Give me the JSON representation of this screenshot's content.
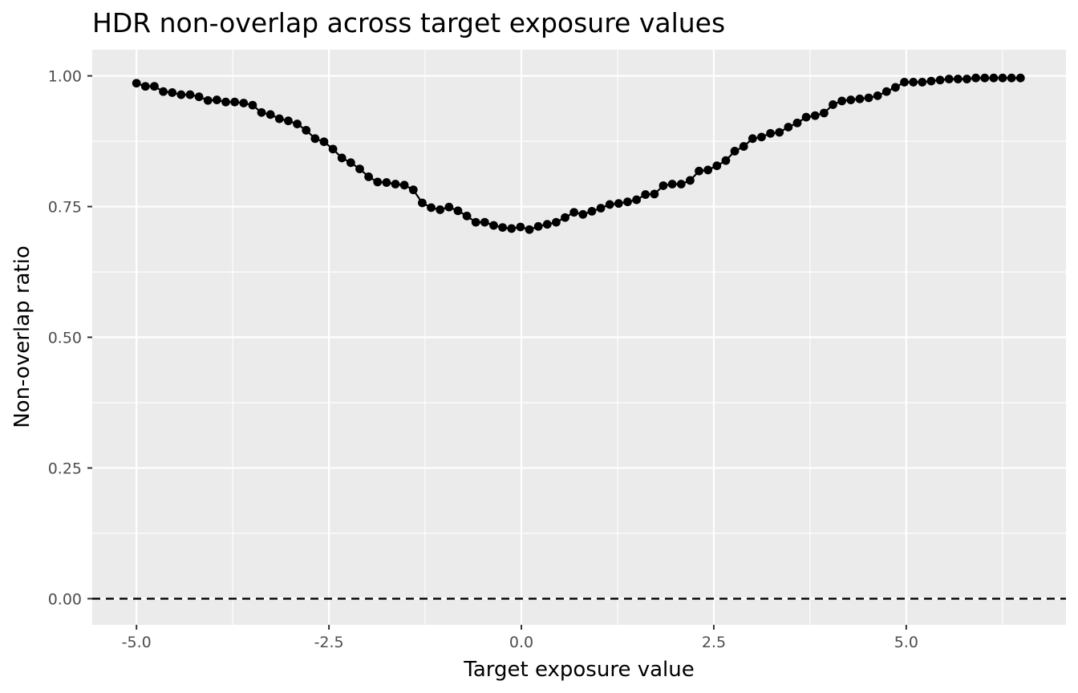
{
  "chart_data": {
    "type": "line",
    "title": "HDR non-overlap across target exposure values",
    "xlabel": "Target exposure value",
    "ylabel": "Non-overlap ratio",
    "xlim": [
      -5.575,
      7.075
    ],
    "ylim": [
      -0.05,
      1.05
    ],
    "x_ticks": [
      -5.0,
      -2.5,
      0.0,
      2.5,
      5.0
    ],
    "x_tick_labels": [
      "-5.0",
      "-2.5",
      "0.0",
      "2.5",
      "5.0"
    ],
    "y_ticks": [
      0.0,
      0.25,
      0.5,
      0.75,
      1.0
    ],
    "y_tick_labels": [
      "0.00",
      "0.25",
      "0.50",
      "0.75",
      "1.00"
    ],
    "grid": true,
    "reference_line": {
      "y": 0.0,
      "style": "dashed",
      "color": "#000000"
    },
    "series": [
      {
        "x": [
          -5.0,
          -4.884,
          -4.768,
          -4.652,
          -4.536,
          -4.42,
          -4.304,
          -4.188,
          -4.072,
          -3.956,
          -3.84,
          -3.724,
          -3.608,
          -3.492,
          -3.376,
          -3.26,
          -3.144,
          -3.028,
          -2.912,
          -2.796,
          -2.68,
          -2.564,
          -2.448,
          -2.332,
          -2.216,
          -2.1,
          -1.984,
          -1.868,
          -1.752,
          -1.636,
          -1.52,
          -1.404,
          -1.288,
          -1.172,
          -1.056,
          -0.94,
          -0.824,
          -0.708,
          -0.592,
          -0.476,
          -0.36,
          -0.244,
          -0.128,
          -0.012,
          0.104,
          0.22,
          0.336,
          0.452,
          0.568,
          0.684,
          0.8,
          0.916,
          1.032,
          1.148,
          1.264,
          1.38,
          1.496,
          1.612,
          1.728,
          1.844,
          1.96,
          2.076,
          2.192,
          2.308,
          2.424,
          2.54,
          2.656,
          2.772,
          2.888,
          3.004,
          3.12,
          3.236,
          3.352,
          3.468,
          3.584,
          3.7,
          3.816,
          3.932,
          4.048,
          4.164,
          4.28,
          4.396,
          4.512,
          4.628,
          4.744,
          4.86,
          4.976,
          5.092,
          5.208,
          5.324,
          5.44,
          5.556,
          5.672,
          5.788,
          5.904,
          6.02,
          6.136,
          6.252,
          6.368,
          6.484
        ],
        "y": [
          0.986,
          0.98,
          0.98,
          0.97,
          0.968,
          0.964,
          0.964,
          0.96,
          0.953,
          0.954,
          0.95,
          0.95,
          0.948,
          0.944,
          0.93,
          0.926,
          0.918,
          0.914,
          0.908,
          0.896,
          0.88,
          0.874,
          0.86,
          0.843,
          0.834,
          0.822,
          0.807,
          0.797,
          0.796,
          0.793,
          0.791,
          0.782,
          0.757,
          0.748,
          0.744,
          0.749,
          0.742,
          0.732,
          0.72,
          0.72,
          0.714,
          0.71,
          0.708,
          0.711,
          0.706,
          0.712,
          0.716,
          0.72,
          0.729,
          0.739,
          0.735,
          0.741,
          0.747,
          0.754,
          0.756,
          0.759,
          0.763,
          0.773,
          0.774,
          0.79,
          0.793,
          0.793,
          0.8,
          0.818,
          0.82,
          0.828,
          0.838,
          0.856,
          0.865,
          0.88,
          0.883,
          0.89,
          0.892,
          0.902,
          0.91,
          0.921,
          0.924,
          0.929,
          0.945,
          0.952,
          0.954,
          0.956,
          0.958,
          0.962,
          0.97,
          0.978,
          0.988,
          0.988,
          0.988,
          0.99,
          0.992,
          0.994,
          0.994,
          0.994,
          0.996,
          0.996,
          0.996,
          0.996,
          0.996,
          0.996
        ],
        "color": "#000000",
        "markers": true
      }
    ]
  }
}
